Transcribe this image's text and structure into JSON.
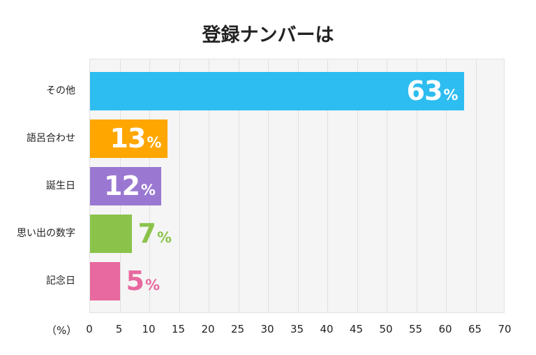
{
  "chart_data": {
    "type": "bar",
    "orientation": "horizontal",
    "title": "登録ナンバーは",
    "xlabel": "（%）",
    "categories": [
      "その他",
      "語呂合わせ",
      "誕生日",
      "思い出の数字",
      "記念日"
    ],
    "values": [
      63,
      13,
      12,
      7,
      5
    ],
    "value_suffix": "%",
    "colors": [
      "#2dbdf0",
      "#ffa600",
      "#9a78d2",
      "#8bc34a",
      "#e8699f"
    ],
    "label_inside": [
      true,
      true,
      true,
      false,
      false
    ],
    "xlim": [
      0,
      70
    ],
    "xticks": [
      "0",
      "5",
      "10",
      "15",
      "20",
      "25",
      "30",
      "35",
      "40",
      "45",
      "50",
      "55",
      "60",
      "65",
      "70"
    ],
    "grid": true
  }
}
